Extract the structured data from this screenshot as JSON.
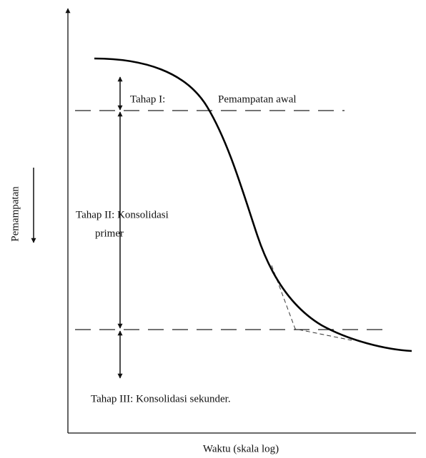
{
  "y_axis_label": "Pemampatan",
  "x_axis_label": "Waktu (skala log)",
  "stages": [
    {
      "name": "Tahap I:",
      "description": "Pemampatan awal"
    },
    {
      "name": "Tahap II: Konsolidasi",
      "description": "primer"
    },
    {
      "name": "Tahap III: Konsolidasi sekunder."
    }
  ]
}
